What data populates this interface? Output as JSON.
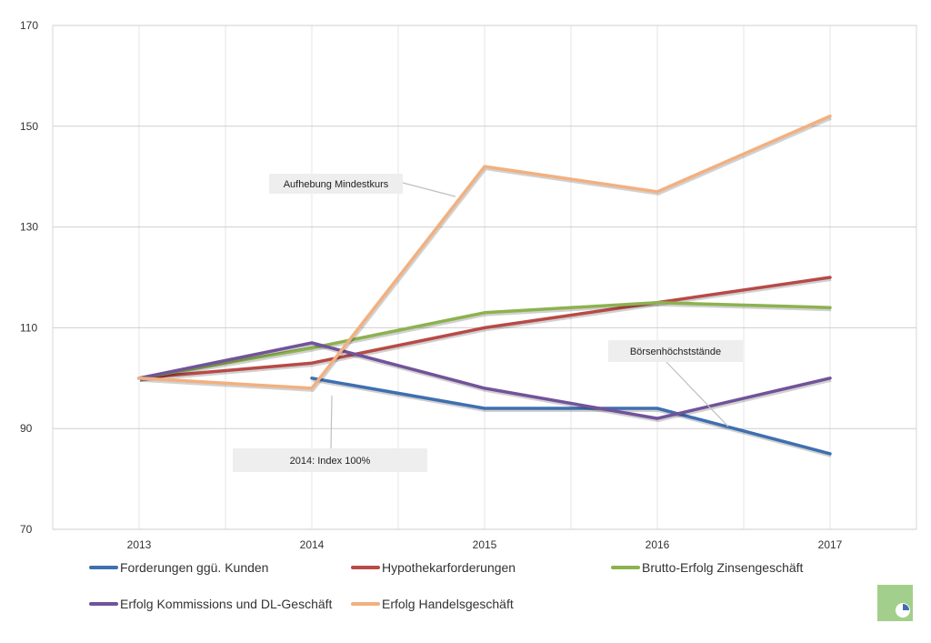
{
  "chart_data": {
    "type": "line",
    "categories": [
      "2013",
      "2014",
      "2015",
      "2016",
      "2017"
    ],
    "ylim": [
      70,
      170
    ],
    "y_ticks": [
      "70",
      "90",
      "110",
      "130",
      "150",
      "170"
    ],
    "grid": true,
    "legend_position": "bottom",
    "series": [
      {
        "name": "Forderungen ggü. Kunden",
        "color": "#3f6fb0",
        "values": [
          null,
          100,
          94,
          94,
          85
        ]
      },
      {
        "name": "Hypothekarforderungen",
        "color": "#b84a47",
        "values": [
          100,
          103,
          110,
          115,
          120
        ]
      },
      {
        "name": "Brutto-Erfolg Zinsengeschäft",
        "color": "#8cb24f",
        "values": [
          100,
          106,
          113,
          115,
          114
        ]
      },
      {
        "name": "Erfolg Kommissions und DL-Geschäft",
        "color": "#71539a",
        "values": [
          100,
          107,
          98,
          92,
          100
        ]
      },
      {
        "name": "Erfolg Handelsgeschäft",
        "color": "#f2b07f",
        "values": [
          100,
          98,
          142,
          137,
          152
        ]
      }
    ],
    "annotations": [
      {
        "text": "Aufhebung Mindestkurs",
        "target_x": "2015",
        "target_y": 142
      },
      {
        "text": "2014: Index 100%",
        "target_x": "2014",
        "target_y": 98
      },
      {
        "text": "Börsenhöchststände",
        "target_x": "2016",
        "target_y": 94
      }
    ]
  },
  "logo": {
    "icon": "pie-chart-icon",
    "color": "#a3cf8c"
  }
}
